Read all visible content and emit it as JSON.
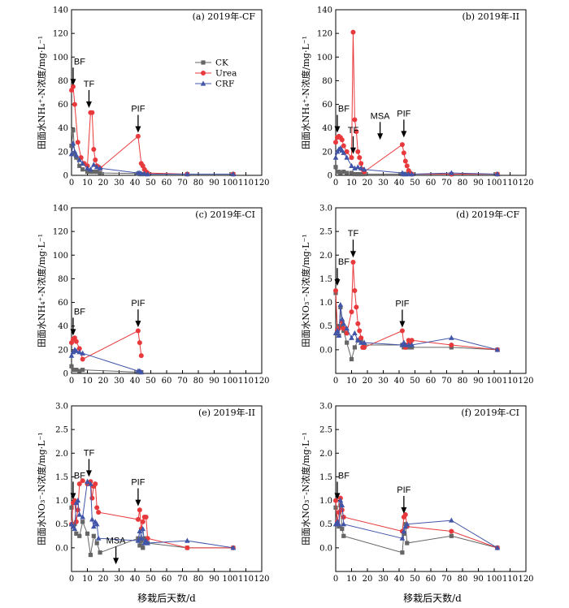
{
  "colors": {
    "CK": "#666666",
    "Urea": "#e8393c",
    "CRF": "#4055a8"
  },
  "markers": {
    "CK": "square",
    "Urea": "circle",
    "CRF": "triangle"
  },
  "legend": [
    "CK",
    "Urea",
    "CRF"
  ],
  "xlabel": "移栽后天数/d",
  "chart_data": [
    {
      "type": "line",
      "title": "(a) 2019年-CF",
      "ylabel": "田面水NH₄⁺-N浓度/mg·L⁻¹",
      "xlim": [
        0,
        120
      ],
      "ylim": [
        0,
        140
      ],
      "yticks": [
        0,
        20,
        40,
        60,
        80,
        100,
        120,
        140
      ],
      "xticks": [
        0,
        10,
        20,
        30,
        40,
        50,
        60,
        70,
        80,
        90,
        100,
        110,
        120
      ],
      "legend_position": "upper-middle",
      "series": [
        {
          "name": "CK",
          "x": [
            0,
            1,
            2,
            3,
            5,
            7,
            10,
            12,
            14,
            16,
            18,
            42,
            43,
            44,
            46,
            48,
            73,
            102
          ],
          "y": [
            25,
            38,
            18,
            15,
            8,
            5,
            3,
            3,
            3,
            3,
            2,
            1.5,
            1,
            1,
            1,
            1,
            1,
            1
          ]
        },
        {
          "name": "Urea",
          "x": [
            0,
            1,
            2,
            4,
            6,
            8,
            10,
            12,
            13,
            14,
            15,
            16,
            17,
            18,
            42,
            44,
            45,
            46,
            47,
            48,
            73,
            102
          ],
          "y": [
            72,
            75,
            60,
            28,
            15,
            10,
            8,
            53,
            53,
            22,
            13,
            8,
            7,
            6,
            33,
            10,
            8,
            5,
            3,
            2,
            1,
            1
          ]
        },
        {
          "name": "CRF",
          "x": [
            0,
            1,
            2,
            3,
            5,
            7,
            10,
            12,
            14,
            16,
            18,
            42,
            43,
            44,
            46,
            48,
            73,
            102
          ],
          "y": [
            18,
            27,
            20,
            17,
            13,
            10,
            6,
            5,
            9,
            7,
            6,
            2,
            2,
            1.5,
            1.5,
            1,
            1,
            1
          ]
        }
      ],
      "annotations": [
        {
          "label": "BF",
          "x": 1,
          "y": 76
        },
        {
          "label": "TF",
          "x": 11,
          "y": 57
        },
        {
          "label": "PIF",
          "x": 42,
          "y": 36
        }
      ]
    },
    {
      "type": "line",
      "title": "(b) 2019年-II",
      "ylabel": "田面水NH₄⁺-N浓度/mg·L⁻¹",
      "xlim": [
        0,
        120
      ],
      "ylim": [
        0,
        140
      ],
      "yticks": [
        0,
        20,
        40,
        60,
        80,
        100,
        120,
        140
      ],
      "xticks": [
        0,
        10,
        20,
        30,
        40,
        50,
        60,
        70,
        80,
        90,
        100,
        110,
        120
      ],
      "series": [
        {
          "name": "CK",
          "x": [
            0,
            1,
            2,
            3,
            5,
            7,
            10,
            12,
            14,
            16,
            18,
            42,
            43,
            44,
            46,
            48,
            73,
            102
          ],
          "y": [
            7,
            3,
            3,
            2,
            3,
            2,
            2,
            1,
            1,
            1,
            1,
            1,
            1,
            1,
            1,
            1,
            1,
            1
          ]
        },
        {
          "name": "Urea",
          "x": [
            0,
            1,
            2,
            3,
            4,
            5,
            7,
            10,
            11,
            12,
            13,
            14,
            15,
            16,
            17,
            18,
            42,
            43,
            44,
            45,
            46,
            47,
            48,
            73,
            102
          ],
          "y": [
            28,
            32,
            33,
            32,
            30,
            25,
            20,
            15,
            121,
            47,
            37,
            20,
            15,
            10,
            5,
            3,
            26,
            19,
            12,
            8,
            4,
            2,
            1,
            1,
            1
          ]
        },
        {
          "name": "CRF",
          "x": [
            0,
            1,
            2,
            3,
            4,
            5,
            7,
            10,
            12,
            14,
            16,
            18,
            42,
            43,
            44,
            46,
            48,
            73,
            102
          ],
          "y": [
            15,
            20,
            22,
            23,
            21,
            19,
            15,
            8,
            6,
            7,
            6,
            5,
            2,
            1,
            1,
            1,
            1,
            2,
            1
          ]
        }
      ],
      "annotations": [
        {
          "label": "BF",
          "x": 1,
          "y": 36
        },
        {
          "label": "TF",
          "x": 11,
          "y": 18
        },
        {
          "label": "MSA",
          "x": 28,
          "y": 30
        },
        {
          "label": "PIF",
          "x": 43,
          "y": 32
        }
      ]
    },
    {
      "type": "line",
      "title": "(c) 2019年-CI",
      "ylabel": "田面水NH₄⁺-N浓度/mg·L⁻¹",
      "xlim": [
        0,
        120
      ],
      "ylim": [
        0,
        140
      ],
      "yticks": [
        0,
        20,
        40,
        60,
        80,
        100,
        120,
        140
      ],
      "xticks": [
        0,
        10,
        20,
        30,
        40,
        50,
        60,
        70,
        80,
        90,
        100,
        110,
        120
      ],
      "series": [
        {
          "name": "CK",
          "x": [
            0,
            1,
            2,
            3,
            5,
            7,
            42,
            43,
            44
          ],
          "y": [
            6,
            3,
            3,
            3,
            2,
            3,
            1,
            1,
            1
          ]
        },
        {
          "name": "Urea",
          "x": [
            0,
            1,
            2,
            3,
            5,
            7,
            42,
            43,
            44
          ],
          "y": [
            26,
            29,
            30,
            27,
            21,
            12,
            36,
            26,
            15
          ]
        },
        {
          "name": "CRF",
          "x": [
            0,
            1,
            2,
            3,
            5,
            7,
            42,
            43,
            44
          ],
          "y": [
            15,
            18,
            20,
            19,
            18,
            17,
            2,
            2,
            1
          ]
        }
      ],
      "annotations": [
        {
          "label": "BF",
          "x": 1,
          "y": 32
        },
        {
          "label": "PIF",
          "x": 42,
          "y": 39
        }
      ]
    },
    {
      "type": "line",
      "title": "(d) 2019年-CF",
      "ylabel": "田面水NO₃⁻-N浓度/mg·L⁻¹",
      "xlim": [
        0,
        120
      ],
      "ylim": [
        -0.5,
        3.0
      ],
      "yticks": [
        0,
        0.5,
        1.0,
        1.5,
        2.0,
        2.5,
        3.0
      ],
      "xticks": [
        0,
        10,
        20,
        30,
        40,
        50,
        60,
        70,
        80,
        90,
        100,
        110,
        120
      ],
      "series": [
        {
          "name": "CK",
          "x": [
            0,
            1,
            2,
            3,
            4,
            5,
            7,
            10,
            12,
            14,
            16,
            18,
            42,
            43,
            44,
            46,
            48,
            73,
            102
          ],
          "y": [
            1.2,
            0.5,
            0.3,
            0.9,
            0.5,
            0.4,
            0.15,
            -0.2,
            0.05,
            0.2,
            0.2,
            0.1,
            0.1,
            0.05,
            0.05,
            0.05,
            0.05,
            0.05,
            0.0
          ]
        },
        {
          "name": "Urea",
          "x": [
            0,
            1,
            2,
            4,
            5,
            7,
            10,
            11,
            12,
            13,
            14,
            15,
            16,
            17,
            18,
            42,
            43,
            44,
            45,
            46,
            47,
            48,
            73,
            102
          ],
          "y": [
            1.25,
            0.4,
            0.45,
            0.6,
            0.45,
            0.35,
            0.8,
            1.85,
            1.25,
            0.9,
            0.55,
            0.4,
            0.25,
            0.05,
            0.05,
            0.4,
            0.1,
            0.05,
            0.1,
            0.2,
            0.15,
            0.2,
            0.1,
            0.0
          ]
        },
        {
          "name": "CRF",
          "x": [
            0,
            1,
            2,
            3,
            4,
            5,
            7,
            10,
            12,
            14,
            16,
            18,
            42,
            43,
            44,
            46,
            48,
            73,
            102
          ],
          "y": [
            0.35,
            0.4,
            0.3,
            0.95,
            0.65,
            0.55,
            0.45,
            0.25,
            0.35,
            0.2,
            0.15,
            0.15,
            0.1,
            0.15,
            0.1,
            0.1,
            0.1,
            0.25,
            0.0
          ]
        }
      ],
      "annotations": [
        {
          "label": "BF",
          "x": 1,
          "y": 1.35
        },
        {
          "label": "TF",
          "x": 11,
          "y": 1.95
        },
        {
          "label": "PIF",
          "x": 42,
          "y": 0.47
        }
      ]
    },
    {
      "type": "line",
      "title": "(e) 2019年-II",
      "ylabel": "田面水NO₃⁻-N浓度/mg·L⁻¹",
      "xlim": [
        0,
        120
      ],
      "ylim": [
        -0.5,
        3.0
      ],
      "yticks": [
        0,
        0.5,
        1.0,
        1.5,
        2.0,
        2.5,
        3.0
      ],
      "xticks": [
        0,
        10,
        20,
        30,
        40,
        50,
        60,
        70,
        80,
        90,
        100,
        110,
        120
      ],
      "series": [
        {
          "name": "CK",
          "x": [
            0,
            1,
            2,
            3,
            5,
            7,
            10,
            12,
            14,
            16,
            18,
            42,
            43,
            44,
            45,
            46,
            48,
            73,
            102
          ],
          "y": [
            0.85,
            0.45,
            0.5,
            0.3,
            0.25,
            0.55,
            0.3,
            -0.15,
            0.25,
            0.1,
            -0.1,
            0.2,
            0.05,
            0.15,
            0.0,
            0.2,
            0.1,
            0.0,
            0.0
          ]
        },
        {
          "name": "Urea",
          "x": [
            0,
            1,
            2,
            3,
            4,
            5,
            7,
            10,
            12,
            13,
            14,
            15,
            16,
            17,
            42,
            43,
            44,
            45,
            46,
            47,
            48,
            73,
            102
          ],
          "y": [
            0.5,
            0.95,
            1.0,
            0.55,
            0.8,
            1.35,
            1.42,
            1.35,
            1.4,
            1.05,
            1.3,
            1.35,
            0.85,
            0.75,
            0.6,
            0.8,
            0.4,
            0.55,
            0.65,
            0.65,
            0.2,
            0.0,
            0.0
          ]
        },
        {
          "name": "CRF",
          "x": [
            0,
            1,
            2,
            3,
            4,
            5,
            7,
            10,
            12,
            13,
            14,
            15,
            16,
            17,
            42,
            43,
            44,
            45,
            46,
            47,
            48,
            73,
            102
          ],
          "y": [
            0.5,
            0.45,
            0.4,
            0.95,
            1.0,
            0.7,
            0.65,
            1.4,
            1.35,
            0.6,
            0.45,
            0.55,
            0.5,
            0.2,
            0.15,
            0.35,
            0.2,
            0.4,
            0.1,
            0.15,
            0.1,
            0.15,
            0.0
          ]
        }
      ],
      "annotations": [
        {
          "label": "BF",
          "x": 1,
          "y": 1.02
        },
        {
          "label": "TF",
          "x": 11,
          "y": 1.5
        },
        {
          "label": "MSA",
          "x": 28,
          "y": -0.35
        },
        {
          "label": "PIF",
          "x": 42,
          "y": 0.88
        }
      ]
    },
    {
      "type": "line",
      "title": "(f) 2019年-CI",
      "ylabel": "田面水NO₃⁻-N浓度/mg·L⁻¹",
      "xlim": [
        0,
        120
      ],
      "ylim": [
        -0.5,
        3.0
      ],
      "yticks": [
        0,
        0.5,
        1.0,
        1.5,
        2.0,
        2.5,
        3.0
      ],
      "xticks": [
        0,
        10,
        20,
        30,
        40,
        50,
        60,
        70,
        80,
        90,
        100,
        110,
        120
      ],
      "series": [
        {
          "name": "CK",
          "x": [
            0,
            1,
            2,
            3,
            4,
            5,
            42,
            43,
            44,
            45,
            73,
            102
          ],
          "y": [
            0.85,
            0.55,
            0.45,
            0.9,
            0.4,
            0.25,
            -0.1,
            0.3,
            0.5,
            0.1,
            0.25,
            0.0
          ]
        },
        {
          "name": "Urea",
          "x": [
            0,
            1,
            2,
            3,
            4,
            5,
            42,
            43,
            44,
            45,
            73,
            102
          ],
          "y": [
            1.0,
            0.55,
            0.75,
            1.05,
            0.8,
            0.65,
            0.35,
            0.65,
            0.7,
            0.45,
            0.35,
            0.0
          ]
        },
        {
          "name": "CRF",
          "x": [
            0,
            1,
            2,
            3,
            4,
            5,
            42,
            43,
            44,
            45,
            73,
            102
          ],
          "y": [
            0.5,
            0.55,
            0.5,
            1.0,
            0.9,
            0.5,
            0.2,
            0.35,
            0.45,
            0.5,
            0.58,
            0.0
          ]
        }
      ],
      "annotations": [
        {
          "label": "BF",
          "x": 1,
          "y": 1.02
        },
        {
          "label": "PIF",
          "x": 43,
          "y": 0.72
        }
      ]
    }
  ]
}
